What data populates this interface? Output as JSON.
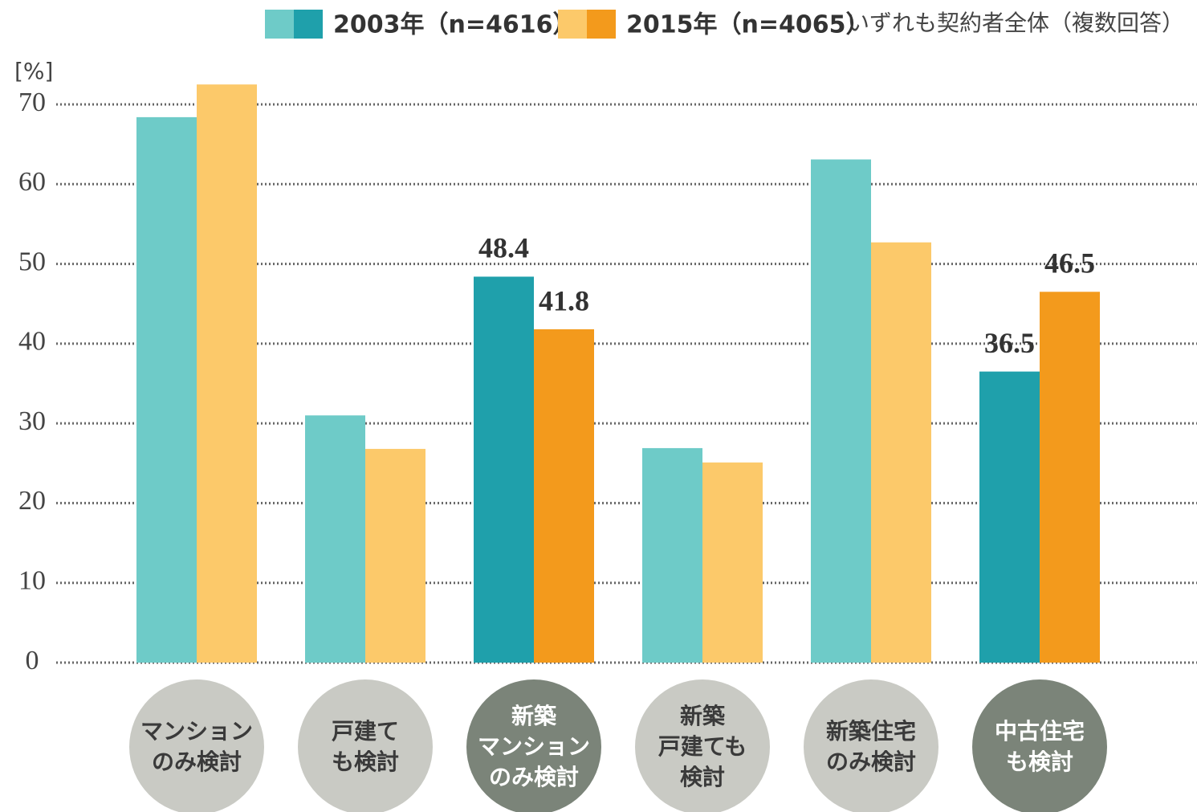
{
  "chart_data": {
    "type": "bar",
    "y_label": "[%]",
    "annotation": "いずれも契約者全体（複数回答）",
    "categories": [
      "マンション\nのみ検討",
      "戸建て\nも検討",
      "新築\nマンション\nのみ検討",
      "新築\n戸建ても\n検討",
      "新築住宅\nのみ検討",
      "中古住宅\nも検討"
    ],
    "highlight": [
      false,
      false,
      true,
      false,
      false,
      true
    ],
    "series": [
      {
        "name": "2003年（n=4616）",
        "color": "#6ecbc8",
        "highlight_color": "#1fa0ab",
        "values": [
          68.4,
          31.0,
          48.4,
          26.9,
          63.1,
          36.5
        ]
      },
      {
        "name": "2015年（n=4065）",
        "color": "#fcc96a",
        "highlight_color": "#f39a1c",
        "values": [
          72.5,
          26.8,
          41.8,
          25.1,
          52.7,
          46.5
        ]
      }
    ],
    "ylim": [
      0,
      70
    ],
    "yticks": [
      0,
      10,
      20,
      30,
      40,
      50,
      60,
      70
    ],
    "grid": true,
    "category_color": "#c9cac4",
    "category_highlight_color": "#7b8479"
  }
}
